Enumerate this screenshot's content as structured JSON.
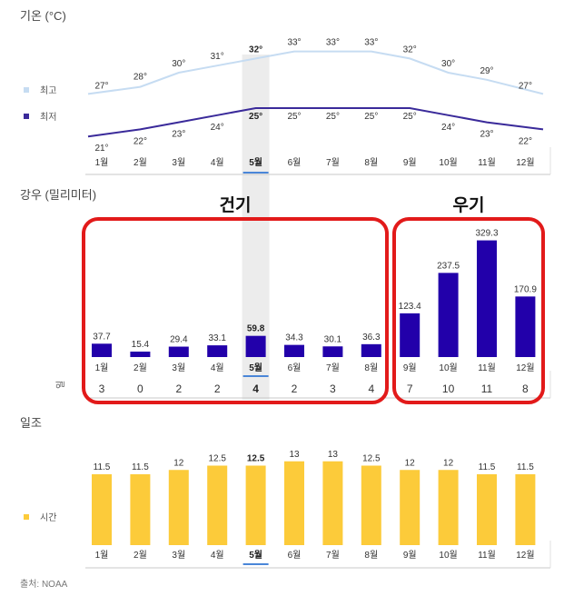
{
  "months": [
    "1월",
    "2월",
    "3월",
    "4월",
    "5월",
    "6월",
    "7월",
    "8월",
    "9월",
    "10월",
    "11월",
    "12월"
  ],
  "highlight_index": 4,
  "colors": {
    "high_line": "#c6dcf2",
    "low_line": "#3a2a9a",
    "rain_bar": "#2200aa",
    "sun_bar": "#fccb3a",
    "highlight_band": "#ececec",
    "axis": "#c8c8c8",
    "marker": "#4a86d8",
    "annotation_box": "#e21a1a"
  },
  "temperature": {
    "title": "기온 (°C)",
    "legend_high": "최고",
    "legend_low": "최저"
  },
  "rainfall": {
    "title": "강우 (밀리미터)",
    "days_label": "일",
    "dry_label": "건기",
    "wet_label": "우기"
  },
  "sunshine": {
    "title": "일조",
    "legend": "시간"
  },
  "source": "출처: NOAA",
  "chart_data": [
    {
      "type": "line",
      "title": "기온 (°C)",
      "categories": [
        "1월",
        "2월",
        "3월",
        "4월",
        "5월",
        "6월",
        "7월",
        "8월",
        "9월",
        "10월",
        "11월",
        "12월"
      ],
      "series": [
        {
          "name": "최고",
          "values": [
            27,
            28,
            30,
            31,
            32,
            33,
            33,
            33,
            32,
            30,
            29,
            27
          ]
        },
        {
          "name": "최저",
          "values": [
            21,
            22,
            23,
            24,
            25,
            25,
            25,
            25,
            25,
            24,
            23,
            22
          ]
        }
      ],
      "value_suffix": "°"
    },
    {
      "type": "bar",
      "title": "강우 (밀리미터)",
      "categories": [
        "1월",
        "2월",
        "3월",
        "4월",
        "5월",
        "6월",
        "7월",
        "8월",
        "9월",
        "10월",
        "11월",
        "12월"
      ],
      "values": [
        37.7,
        15.4,
        29.4,
        33.1,
        59.8,
        34.3,
        30.1,
        36.3,
        123.4,
        237.5,
        329.3,
        170.9
      ],
      "rainy_days": [
        3,
        0,
        2,
        2,
        4,
        2,
        3,
        4,
        7,
        10,
        11,
        8
      ],
      "annotations": [
        "건기",
        "우기"
      ]
    },
    {
      "type": "bar",
      "title": "일조",
      "categories": [
        "1월",
        "2월",
        "3월",
        "4월",
        "5월",
        "6월",
        "7월",
        "8월",
        "9월",
        "10월",
        "11월",
        "12월"
      ],
      "series": [
        {
          "name": "시간",
          "values": [
            11.5,
            11.5,
            12,
            12.5,
            12.5,
            13,
            13,
            12.5,
            12,
            12,
            11.5,
            11.5
          ]
        }
      ]
    }
  ]
}
